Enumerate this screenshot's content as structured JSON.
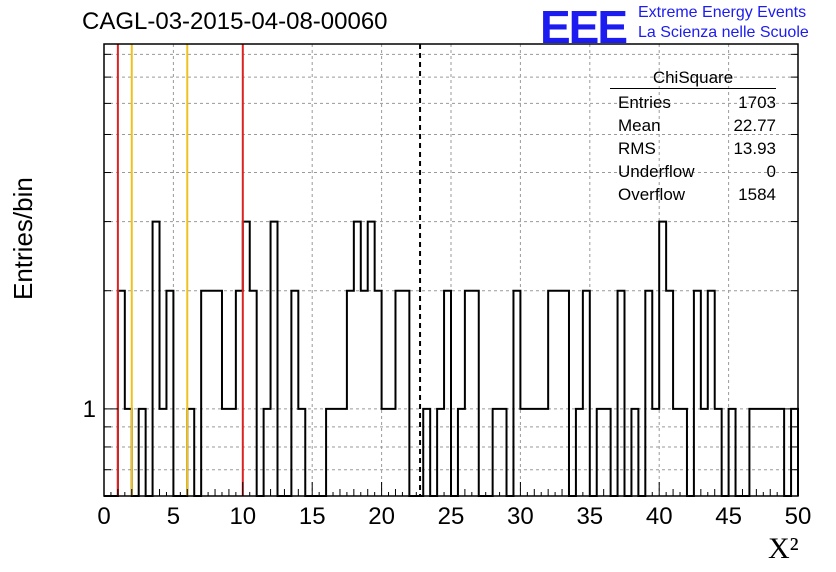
{
  "title": "CAGL-03-2015-04-08-00060",
  "logo": {
    "mark": "EEE",
    "line1": "Extreme Energy Events",
    "line2": "La Scienza nelle Scuole",
    "color": "#1c1cf0"
  },
  "stats": {
    "name": "ChiSquare",
    "rows": [
      {
        "label": "Entries",
        "value": "1703"
      },
      {
        "label": "Mean",
        "value": "22.77"
      },
      {
        "label": "RMS",
        "value": "13.93"
      },
      {
        "label": "Underflow",
        "value": "0"
      },
      {
        "label": "Overflow",
        "value": "1584"
      }
    ]
  },
  "chart_data": {
    "type": "bar",
    "histogram": "step",
    "title": "CAGL-03-2015-04-08-00060",
    "xlabel": "X²",
    "ylabel": "Entries/bin",
    "xlim": [
      0,
      50
    ],
    "ylim": [
      0.6,
      8.5
    ],
    "yscale": "log",
    "grid": true,
    "x_ticks": [
      "0",
      "5",
      "10",
      "15",
      "20",
      "25",
      "30",
      "35",
      "40",
      "45",
      "50"
    ],
    "y_tick_labels": [
      {
        "value": 1,
        "label": "1"
      }
    ],
    "bin_width": 0.5,
    "bin_start": 0,
    "values": [
      0,
      0,
      2,
      1,
      0,
      1,
      0,
      3,
      1,
      2,
      0,
      0,
      1,
      0,
      2,
      2,
      2,
      1,
      1,
      2,
      3,
      2,
      0,
      1,
      3,
      0,
      0,
      2,
      1,
      0,
      0,
      0,
      1,
      1,
      1,
      2,
      3,
      2,
      3,
      2,
      1,
      1,
      2,
      2,
      0,
      0,
      1,
      0,
      1,
      2,
      0,
      1,
      2,
      2,
      0,
      0,
      1,
      1,
      0,
      2,
      1,
      1,
      1,
      1,
      2,
      2,
      2,
      0,
      1,
      2,
      0,
      1,
      1,
      0,
      2,
      0,
      1,
      0,
      2,
      1,
      3,
      2,
      1,
      1,
      0,
      2,
      1,
      2,
      1,
      0,
      1,
      0,
      0,
      1,
      1,
      1,
      1,
      1,
      0,
      1
    ],
    "reference_lines": [
      {
        "x": 1.0,
        "color": "#dd2222",
        "style": "solid"
      },
      {
        "x": 2.0,
        "color": "#f0c020",
        "style": "solid"
      },
      {
        "x": 6.0,
        "color": "#f0c020",
        "style": "solid"
      },
      {
        "x": 10.0,
        "color": "#dd2222",
        "style": "solid"
      },
      {
        "x": 22.77,
        "color": "#000000",
        "style": "dashed"
      }
    ]
  }
}
